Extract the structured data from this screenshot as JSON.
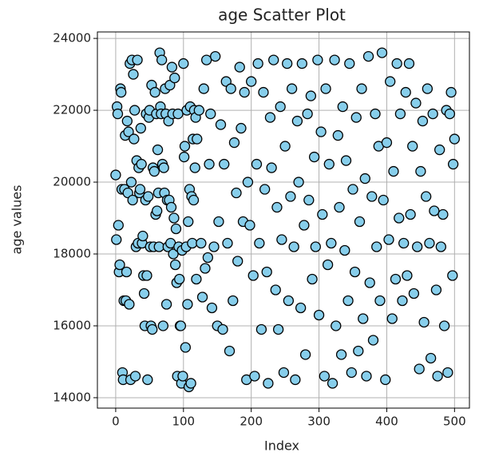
{
  "chart_data": {
    "type": "scatter",
    "title": "age Scatter Plot",
    "x_label": "Index",
    "y_label": "age values",
    "color": "#87ceeb",
    "edge_color": "#000000",
    "grid": true,
    "xlim": [
      -27,
      522
    ],
    "ylim": [
      13710,
      24180
    ],
    "xticks": [
      0,
      100,
      200,
      300,
      400,
      500
    ],
    "yticks": [
      14000,
      16000,
      18000,
      20000,
      22000,
      24000
    ],
    "x": [
      0,
      1,
      2,
      3,
      4,
      5,
      6,
      7,
      8,
      9,
      10,
      11,
      12,
      13,
      14,
      15,
      16,
      17,
      18,
      19,
      20,
      21,
      22,
      23,
      24,
      25,
      26,
      27,
      28,
      29,
      30,
      31,
      32,
      33,
      34,
      35,
      36,
      37,
      38,
      39,
      40,
      41,
      42,
      43,
      44,
      45,
      46,
      47,
      48,
      49,
      50,
      51,
      52,
      53,
      54,
      55,
      56,
      57,
      58,
      59,
      60,
      61,
      62,
      63,
      64,
      65,
      66,
      67,
      68,
      69,
      70,
      71,
      72,
      73,
      74,
      75,
      76,
      77,
      78,
      79,
      80,
      81,
      82,
      83,
      84,
      85,
      86,
      87,
      88,
      89,
      90,
      91,
      92,
      93,
      94,
      95,
      96,
      97,
      98,
      99,
      100,
      101,
      102,
      103,
      104,
      105,
      106,
      107,
      108,
      109,
      110,
      111,
      112,
      113,
      114,
      115,
      116,
      117,
      118,
      119,
      120,
      123,
      126,
      128,
      130,
      132,
      134,
      136,
      138,
      140,
      142,
      145,
      147,
      150,
      152,
      155,
      158,
      160,
      163,
      165,
      168,
      170,
      173,
      175,
      178,
      180,
      183,
      185,
      188,
      190,
      193,
      195,
      198,
      200,
      203,
      205,
      208,
      210,
      212,
      215,
      218,
      220,
      223,
      225,
      228,
      230,
      233,
      236,
      238,
      240,
      243,
      245,
      248,
      250,
      253,
      255,
      258,
      260,
      263,
      265,
      268,
      270,
      273,
      275,
      278,
      280,
      283,
      285,
      288,
      290,
      293,
      295,
      298,
      300,
      303,
      305,
      308,
      310,
      313,
      315,
      318,
      320,
      323,
      325,
      328,
      330,
      333,
      335,
      338,
      340,
      343,
      345,
      348,
      350,
      353,
      355,
      358,
      360,
      363,
      365,
      368,
      370,
      373,
      375,
      378,
      380,
      383,
      385,
      388,
      390,
      393,
      395,
      398,
      400,
      403,
      405,
      408,
      410,
      413,
      415,
      418,
      420,
      423,
      425,
      428,
      430,
      433,
      435,
      438,
      440,
      443,
      445,
      448,
      450,
      453,
      455,
      458,
      460,
      463,
      465,
      468,
      470,
      473,
      475,
      478,
      480,
      483,
      485,
      488,
      490,
      493,
      495,
      497,
      498,
      500
    ],
    "values": [
      20200,
      18400,
      22100,
      21900,
      18800,
      17500,
      17700,
      22600,
      22500,
      19800,
      14700,
      14500,
      16700,
      19800,
      21300,
      16700,
      17500,
      21700,
      19700,
      21400,
      16600,
      23300,
      14500,
      20000,
      23400,
      19500,
      23000,
      21200,
      22000,
      14600,
      18200,
      20600,
      23400,
      18300,
      20400,
      19700,
      19800,
      21500,
      20500,
      18300,
      18500,
      17400,
      16900,
      16000,
      19500,
      21900,
      17400,
      14500,
      19600,
      21800,
      22000,
      18200,
      16000,
      22700,
      15900,
      20400,
      18200,
      20300,
      22500,
      19100,
      21900,
      19200,
      20900,
      19700,
      18200,
      23600,
      22100,
      21900,
      23400,
      20500,
      16000,
      20400,
      19700,
      22600,
      21900,
      16600,
      19500,
      18200,
      21700,
      19500,
      22700,
      18300,
      19300,
      23200,
      21900,
      18000,
      19000,
      22900,
      17700,
      18700,
      17200,
      14600,
      21900,
      18200,
      17300,
      16000,
      16000,
      14400,
      18100,
      14600,
      23300,
      20700,
      21000,
      15400,
      18200,
      22000,
      16600,
      18900,
      14300,
      19800,
      22100,
      14400,
      19600,
      18300,
      21200,
      19500,
      22000,
      20400,
      21800,
      17300,
      21200,
      22000,
      18300,
      16800,
      22600,
      17600,
      23400,
      17900,
      20500,
      21900,
      16500,
      18200,
      23500,
      16000,
      18900,
      21600,
      15900,
      20500,
      22800,
      18300,
      15300,
      22600,
      16700,
      21100,
      19700,
      17800,
      23200,
      21500,
      18900,
      22500,
      14500,
      20000,
      18800,
      22800,
      17400,
      14600,
      20500,
      23300,
      18300,
      15900,
      22500,
      19800,
      17500,
      14400,
      21800,
      20400,
      23400,
      17000,
      19300,
      15900,
      22100,
      18400,
      14700,
      21000,
      23300,
      16700,
      19600,
      22600,
      18200,
      14500,
      21700,
      20000,
      16500,
      23300,
      18800,
      15200,
      21900,
      19500,
      22400,
      17300,
      20700,
      18200,
      23400,
      16300,
      21400,
      19100,
      14600,
      22600,
      17700,
      20500,
      18300,
      14400,
      23400,
      16000,
      21300,
      19300,
      15200,
      22100,
      18100,
      20600,
      16700,
      23300,
      14700,
      19800,
      17500,
      21800,
      15300,
      18900,
      22600,
      16200,
      20100,
      14600,
      23500,
      17200,
      19600,
      15600,
      21900,
      18200,
      21000,
      16700,
      23600,
      19500,
      14500,
      21100,
      18400,
      22800,
      16200,
      20300,
      17300,
      23300,
      19000,
      21900,
      16700,
      18300,
      22500,
      17400,
      23300,
      19100,
      21000,
      16900,
      22200,
      18200,
      14800,
      20300,
      21700,
      16100,
      19600,
      22600,
      18300,
      15100,
      21900,
      19200,
      17000,
      14600,
      20900,
      18200,
      19100,
      16000,
      22000,
      14700,
      21900,
      22500,
      17400,
      20500,
      21200
    ]
  }
}
